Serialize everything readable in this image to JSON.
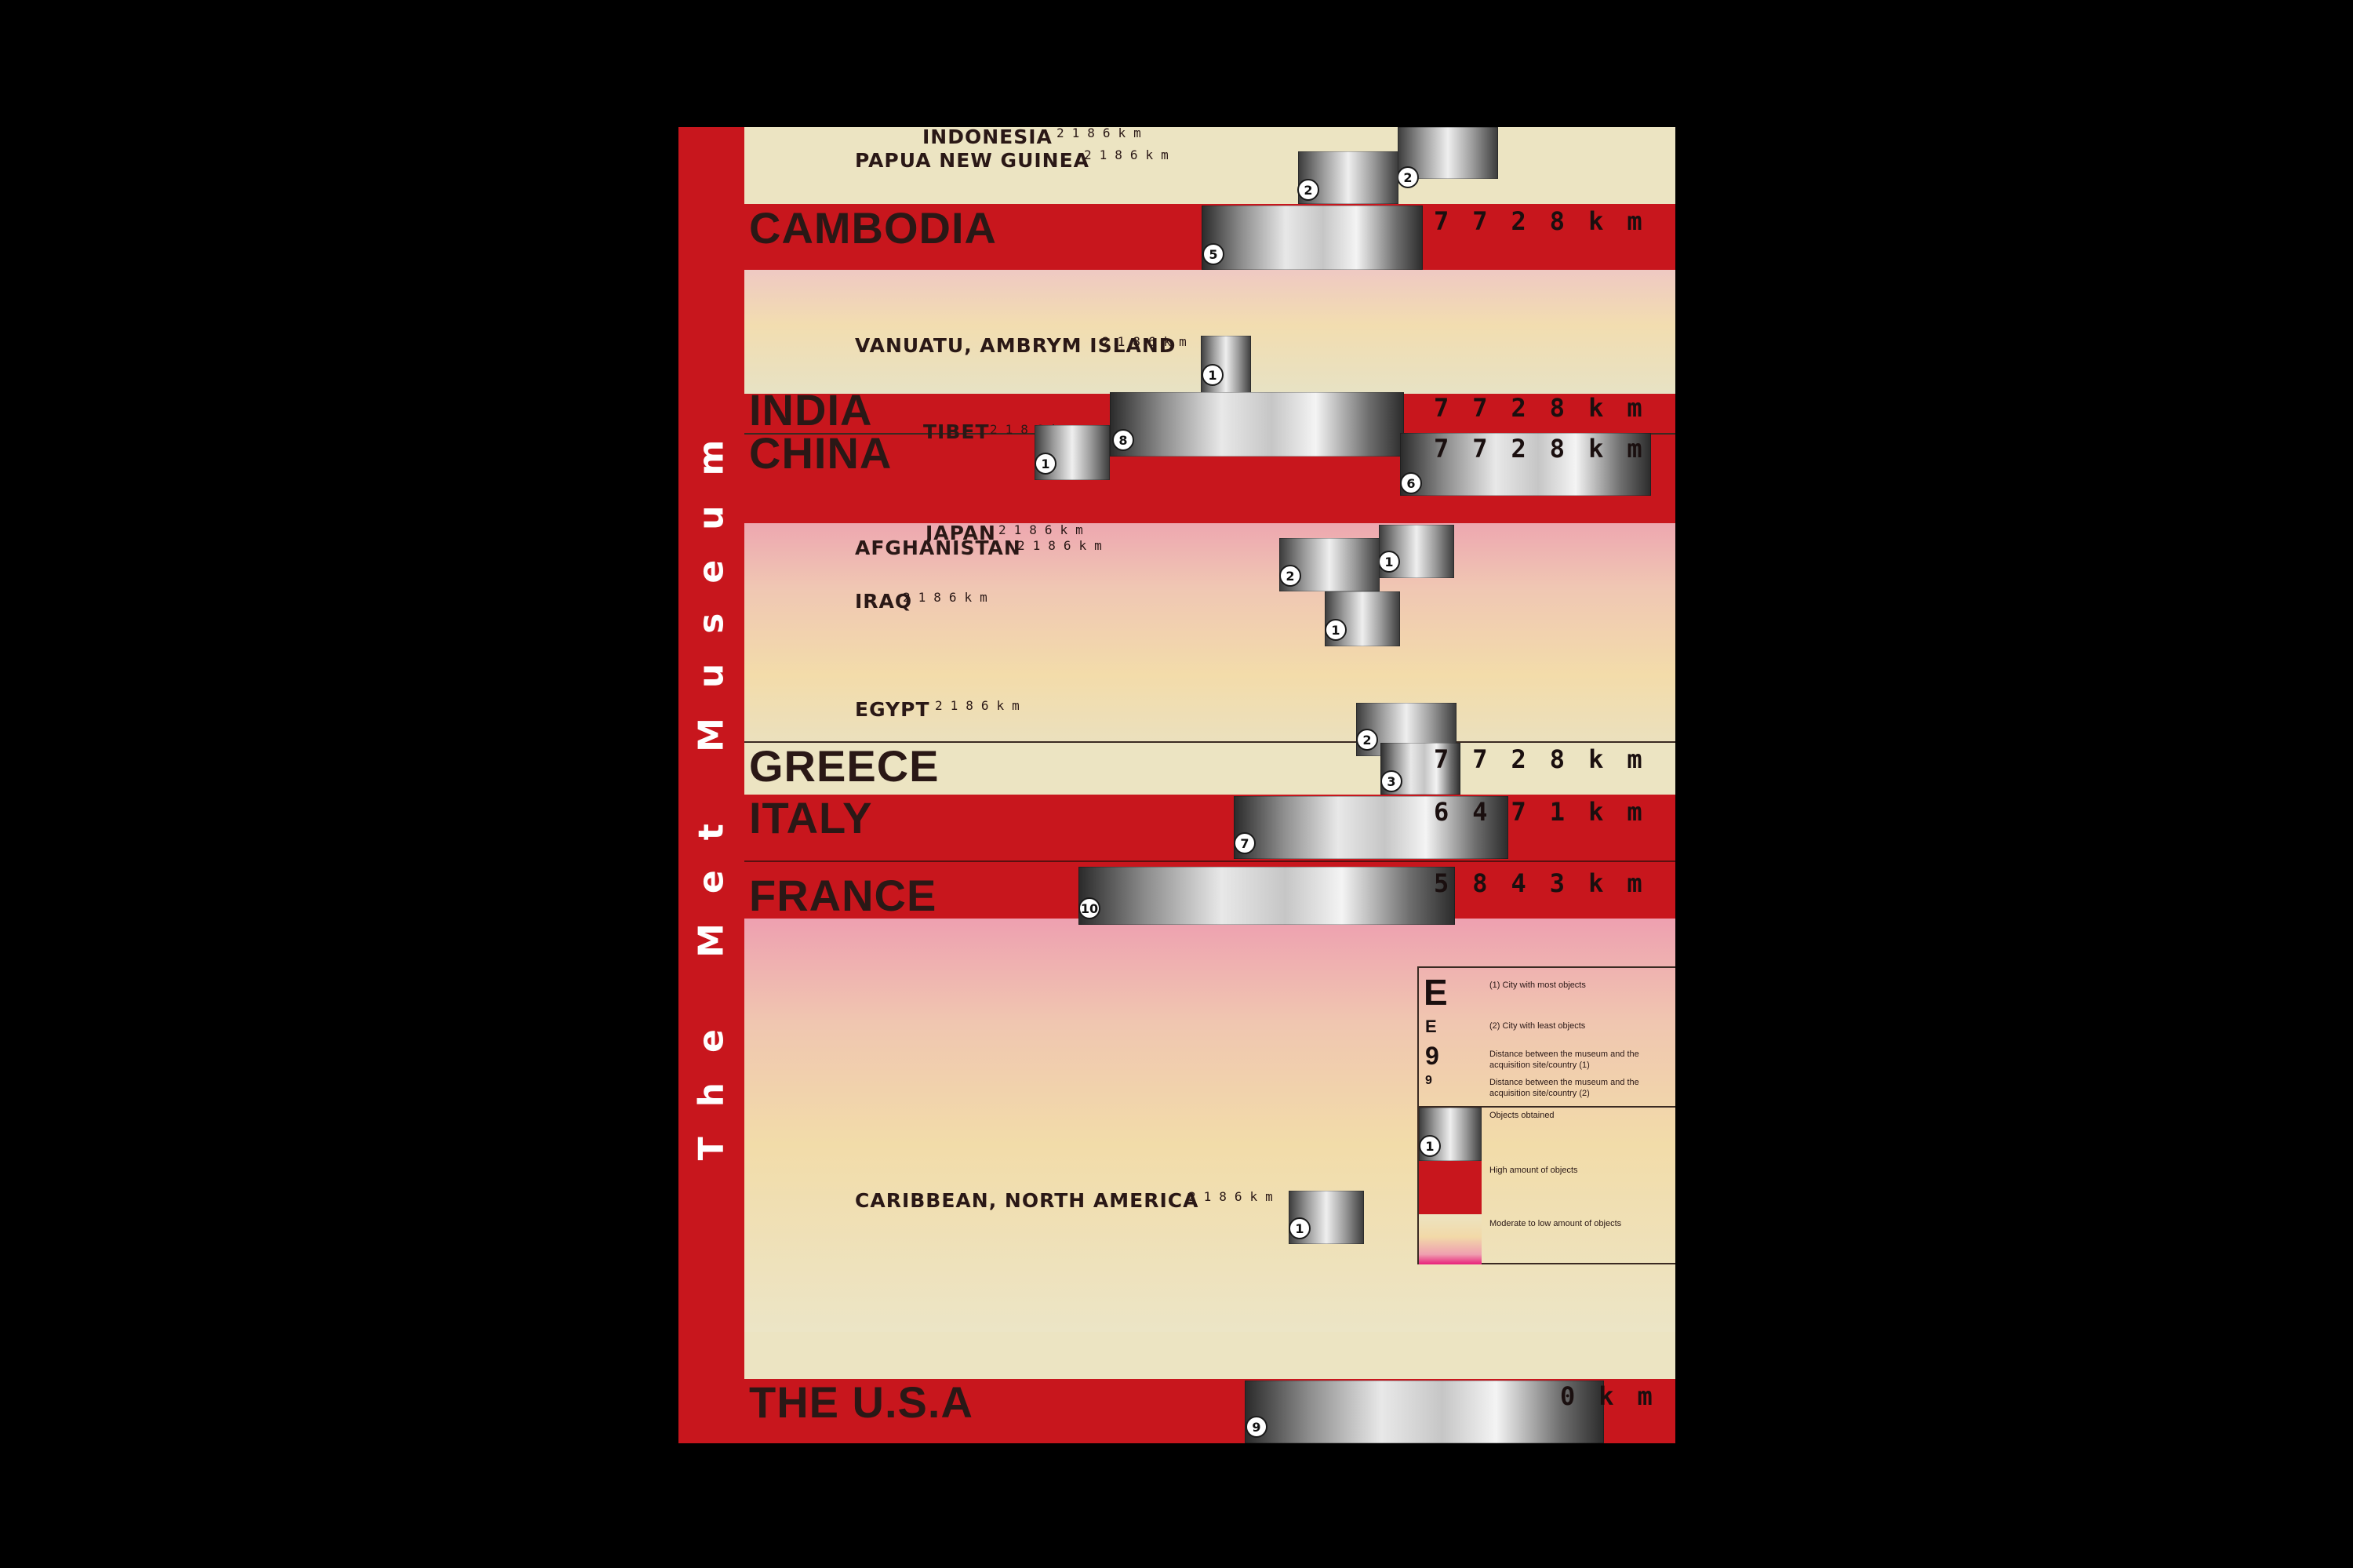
{
  "sidebar": {
    "title": "The Met Museum"
  },
  "rows": {
    "indonesia": {
      "name": "INDONESIA",
      "dist": "2186km",
      "count": "2"
    },
    "png": {
      "name": "PAPUA NEW GUINEA",
      "dist": "2186km",
      "count": "2"
    },
    "cambodia": {
      "name": "CAMBODIA",
      "dist": "7728km",
      "count": "5"
    },
    "vanuatu": {
      "name": "VANUATU, AMBRYM ISLAND",
      "dist": "2186km",
      "count": "1"
    },
    "india": {
      "name": "INDIA",
      "dist": "7728km",
      "count": "8"
    },
    "tibet": {
      "name": "TIBET",
      "dist": "2186km",
      "count": "1"
    },
    "china": {
      "name": "CHINA",
      "dist": "7728km",
      "count": "6"
    },
    "japan": {
      "name": "JAPAN",
      "dist": "2186km",
      "count": "1"
    },
    "afghanistan": {
      "name": "AFGHANISTAN",
      "dist": "2186km",
      "count": "2"
    },
    "iraq": {
      "name": "IRAQ",
      "dist": "2186km",
      "count": "1"
    },
    "egypt": {
      "name": "EGYPT",
      "dist": "2186km",
      "count": "2"
    },
    "greece": {
      "name": "GREECE",
      "dist": "7728km",
      "count": "3"
    },
    "italy": {
      "name": "ITALY",
      "dist": "6471km",
      "count": "7"
    },
    "france": {
      "name": "FRANCE",
      "dist": "5843km",
      "count": "10"
    },
    "caribbean": {
      "name": "CARIBBEAN, NORTH AMERICA",
      "dist": "2186km",
      "count": "1"
    },
    "usa": {
      "name": "THE U.S.A",
      "dist": "0km",
      "count": "9"
    }
  },
  "legend": {
    "sym_large_e": "E",
    "sym_small_e": "E",
    "sym_large_9": "9",
    "sym_small_9": "9",
    "most": "(1) City with most objects",
    "least": "(2) City with least objects",
    "dist1": "Distance between the museum and the acquisition site/country (1)",
    "dist2": "Distance between the museum and the acquisition site/country (2)",
    "obtained": "Objects obtained",
    "obtained_badge": "1",
    "high": "High amount of objects",
    "moderate": "Moderate to low amount of objects"
  },
  "colors": {
    "red": "#c8161d",
    "beige": "#ece4c2",
    "pink": "#eea0b0",
    "ink": "#2a1816"
  }
}
